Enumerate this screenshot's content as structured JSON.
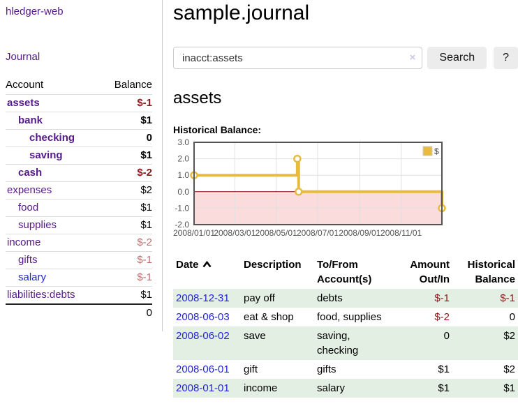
{
  "sidebar": {
    "app_title": "hledger-web",
    "nav_journal": "Journal",
    "accounts_table": {
      "headers": [
        "Account",
        "Balance"
      ],
      "rows": [
        {
          "account": "assets",
          "balance": "$-1",
          "depth": 1,
          "bold": true,
          "link_color": "purple",
          "balance_style": "neg-strong"
        },
        {
          "account": "bank",
          "balance": "$1",
          "depth": 2,
          "bold": true,
          "link_color": "purple",
          "balance_style": "strong"
        },
        {
          "account": "checking",
          "balance": "0",
          "depth": 3,
          "bold": true,
          "link_color": "purple",
          "balance_style": "strong"
        },
        {
          "account": "saving",
          "balance": "$1",
          "depth": 3,
          "bold": true,
          "link_color": "purple",
          "balance_style": "strong"
        },
        {
          "account": "cash",
          "balance": "$-2",
          "depth": 2,
          "bold": true,
          "link_color": "purple",
          "balance_style": "neg-strong"
        },
        {
          "account": "expenses",
          "balance": "$2",
          "depth": 1,
          "bold": false,
          "link_color": "purple",
          "balance_style": "plain"
        },
        {
          "account": "food",
          "balance": "$1",
          "depth": 2,
          "bold": false,
          "link_color": "purple",
          "balance_style": "plain"
        },
        {
          "account": "supplies",
          "balance": "$1",
          "depth": 2,
          "bold": false,
          "link_color": "purple",
          "balance_style": "plain"
        },
        {
          "account": "income",
          "balance": "$-2",
          "depth": 1,
          "bold": false,
          "link_color": "purple",
          "balance_style": "neg-muted"
        },
        {
          "account": "gifts",
          "balance": "$-1",
          "depth": 2,
          "bold": false,
          "link_color": "purple",
          "balance_style": "neg-muted"
        },
        {
          "account": "salary",
          "balance": "$-1",
          "depth": 2,
          "bold": false,
          "link_color": "blue",
          "balance_style": "neg-muted"
        },
        {
          "account": "liabilities:debts",
          "balance": "$1",
          "depth": 1,
          "bold": false,
          "link_color": "purple",
          "balance_style": "plain"
        }
      ],
      "total": "0"
    }
  },
  "main": {
    "title": "sample.journal",
    "search": {
      "value": "inacct:assets",
      "clear_icon": "×",
      "button_label": "Search",
      "help_label": "?"
    },
    "section_title": "assets",
    "transactions": {
      "headers": [
        "Date",
        "Description",
        "To/From Account(s)",
        "Amount Out/In",
        "Historical Balance"
      ],
      "rows": [
        {
          "date": "2008-12-31",
          "description": "pay off",
          "accounts": "debts",
          "amount": "$-1",
          "amount_negative": true,
          "balance": "$-1",
          "balance_negative": true,
          "striped": true
        },
        {
          "date": "2008-06-03",
          "description": "eat & shop",
          "accounts": "food, supplies",
          "amount": "$-2",
          "amount_negative": true,
          "balance": "0",
          "balance_negative": false,
          "striped": false
        },
        {
          "date": "2008-06-02",
          "description": "save",
          "accounts": "saving, checking",
          "amount": "0",
          "amount_negative": false,
          "balance": "$2",
          "balance_negative": false,
          "striped": true
        },
        {
          "date": "2008-06-01",
          "description": "gift",
          "accounts": "gifts",
          "amount": "$1",
          "amount_negative": false,
          "balance": "$2",
          "balance_negative": false,
          "striped": false
        },
        {
          "date": "2008-01-01",
          "description": "income",
          "accounts": "salary",
          "amount": "$1",
          "amount_negative": false,
          "balance": "$1",
          "balance_negative": false,
          "striped": true
        }
      ]
    }
  },
  "chart_data": {
    "type": "line",
    "step": true,
    "title": "Historical Balance:",
    "series": [
      {
        "name": "$",
        "color": "#e7bb3d",
        "points": [
          [
            "2008-01-01",
            1
          ],
          [
            "2008-06-01",
            2
          ],
          [
            "2008-06-03",
            0
          ],
          [
            "2008-12-31",
            -1
          ]
        ]
      }
    ],
    "xlim": [
      "2008-01-01",
      "2008-12-31"
    ],
    "ylim": [
      -2,
      3
    ],
    "x_tick_dates": [
      "2008-01-01",
      "2008-03-01",
      "2008-05-01",
      "2008-07-01",
      "2008-09-01",
      "2008-11-01"
    ],
    "x_tick_labels": [
      "2008/01/01",
      "2008/03/01",
      "2008/05/01",
      "2008/07/01",
      "2008/09/01",
      "2008/11/01"
    ],
    "y_ticks": [
      3,
      2,
      1,
      0,
      -1,
      -2
    ],
    "y_tick_labels": [
      "3.0",
      "2.0",
      "1.0",
      "0.0",
      "-1.0",
      "-2.0"
    ],
    "grid": true,
    "legend_position": "top-right",
    "legend_label": "$",
    "border_color": "#545454",
    "grid_color": "#e0e0e0",
    "tick_label_color": "#545454",
    "zero_line_color": "#8b0000",
    "negative_region_fill": "#fadcdc"
  }
}
